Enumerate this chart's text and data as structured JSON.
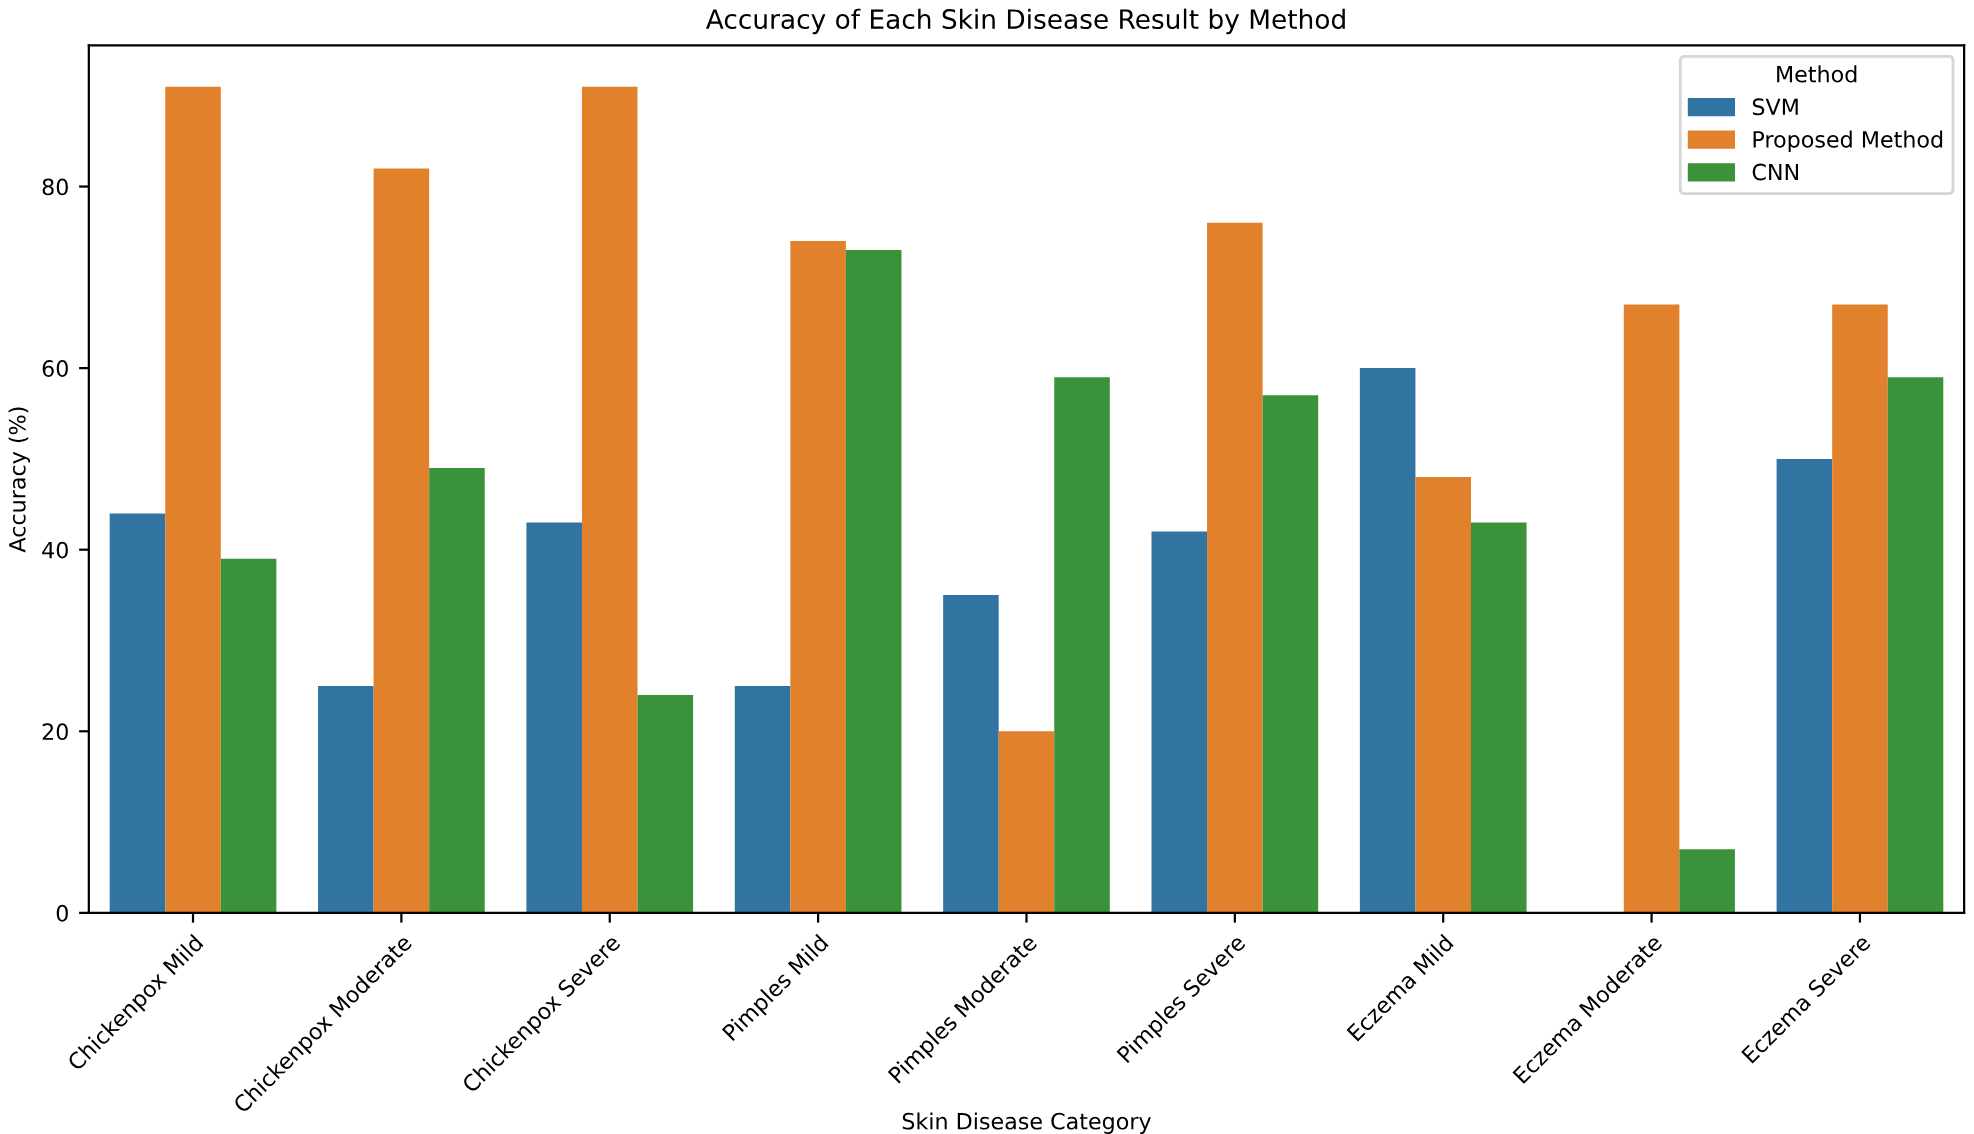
{
  "chart_data": {
    "type": "bar",
    "title": "Accuracy of Each Skin Disease Result by Method",
    "xlabel": "Skin Disease Category",
    "ylabel": "Accuracy (%)",
    "legend_title": "Method",
    "categories": [
      "Chickenpox Mild",
      "Chickenpox Moderate",
      "Chickenpox Severe",
      "Pimples Mild",
      "Pimples Moderate",
      "Pimples Severe",
      "Eczema Mild",
      "Eczema Moderate",
      "Eczema Severe"
    ],
    "series": [
      {
        "name": "SVM",
        "color": "#3274a1",
        "values": [
          44,
          25,
          43,
          25,
          35,
          42,
          60,
          0,
          50
        ]
      },
      {
        "name": "Proposed Method",
        "color": "#e1812c",
        "values": [
          91,
          82,
          91,
          74,
          20,
          76,
          48,
          67,
          67
        ]
      },
      {
        "name": "CNN",
        "color": "#3a923a",
        "values": [
          39,
          49,
          24,
          73,
          59,
          57,
          43,
          7,
          59
        ]
      }
    ],
    "ylim": [
      0,
      95.55
    ],
    "yticks": [
      0,
      20,
      40,
      60,
      80
    ],
    "grid": false,
    "legend": "top right"
  }
}
